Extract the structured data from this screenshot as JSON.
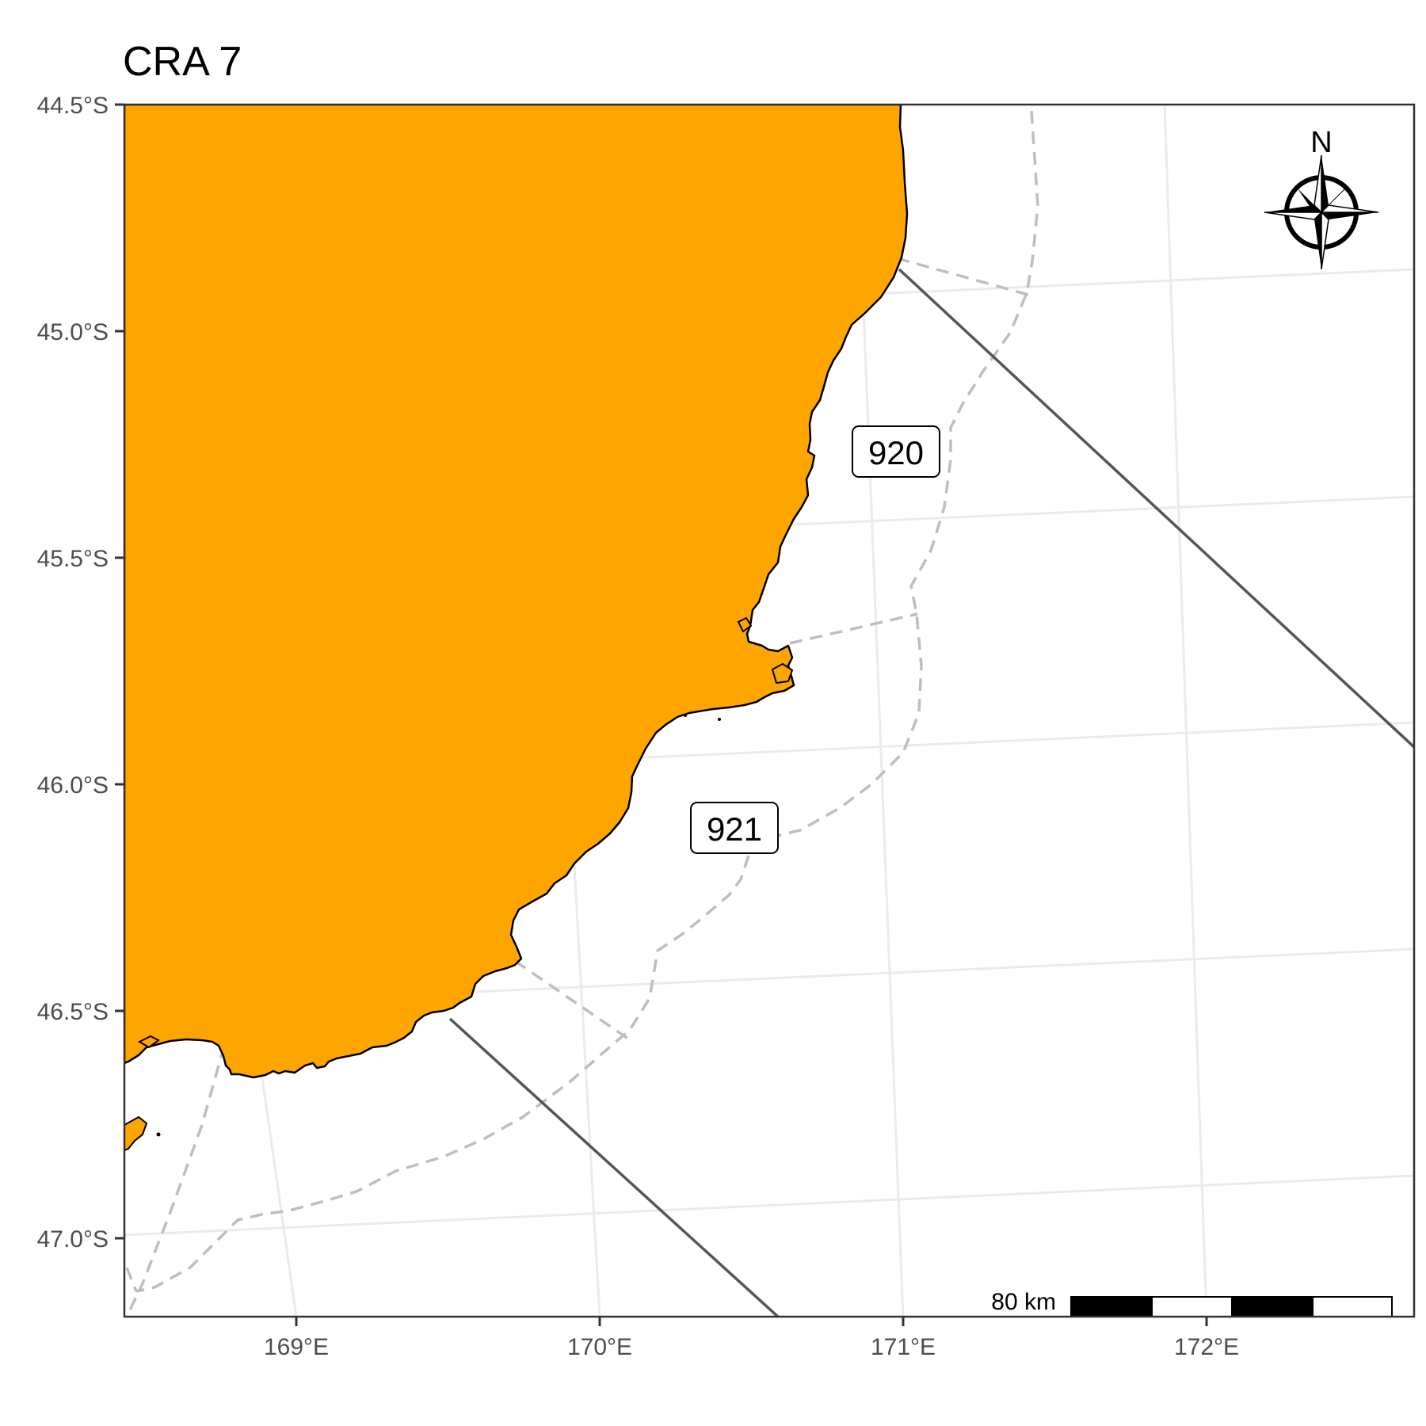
{
  "map": {
    "title": "CRA 7",
    "y_axis_ticks": [
      "44.5°S",
      "45.0°S",
      "45.5°S",
      "46.0°S",
      "46.5°S",
      "47.0°S"
    ],
    "x_axis_ticks": [
      "169°E",
      "170°E",
      "171°E",
      "172°E"
    ],
    "statistical_areas": [
      "920",
      "921"
    ],
    "scale_bar": {
      "label": "80 km"
    },
    "north_arrow": {
      "label": "N"
    },
    "colors": {
      "land": "#FFA500",
      "coastline": "#000000",
      "area_boundary": "#555555",
      "depth_contour": "#BEBEBE",
      "graticule": "#EBEBEB",
      "panel_border": "#333333"
    }
  }
}
